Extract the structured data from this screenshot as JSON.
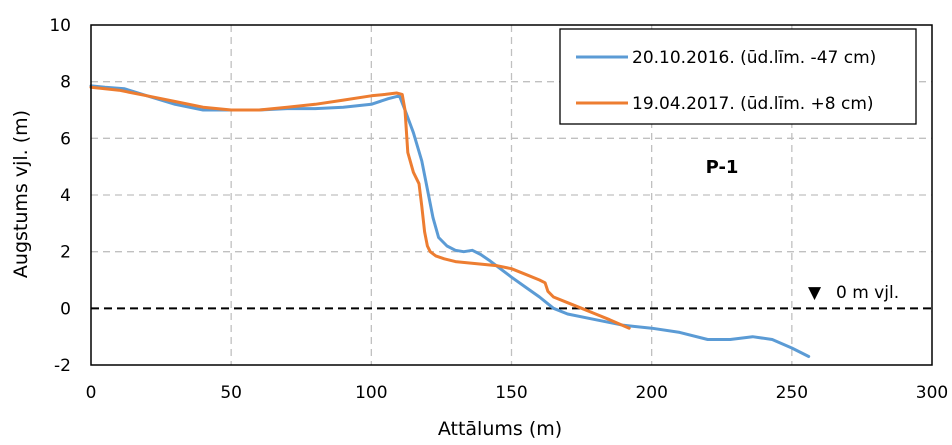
{
  "chart_data": {
    "type": "line",
    "title": "",
    "xlabel": "Attālums (m)",
    "ylabel": "Augstums vjl. (m)",
    "xlim": [
      0,
      300
    ],
    "ylim": [
      -2,
      10
    ],
    "xticks": [
      0,
      50,
      100,
      150,
      200,
      250,
      300
    ],
    "yticks": [
      -2,
      0,
      2,
      4,
      6,
      8,
      10
    ],
    "xtick_labels": [
      "0",
      "50",
      "100",
      "150",
      "200",
      "250",
      "300"
    ],
    "ytick_labels": [
      "-2",
      "0",
      "2",
      "4",
      "6",
      "8",
      "10"
    ],
    "grid": true,
    "legend_position": "top-right",
    "annotation": "P-1",
    "reference_line": {
      "y": 0,
      "label": "0 m vjl.",
      "marker": "▼",
      "style": "dashed",
      "color": "#000000"
    },
    "series": [
      {
        "name": "20.10.2016. (ūd.līm. -47 cm)",
        "color": "#5B9BD5",
        "x": [
          0,
          5,
          12,
          20,
          30,
          40,
          50,
          60,
          70,
          80,
          90,
          100,
          106,
          110,
          112,
          115,
          118,
          120,
          122,
          124,
          127,
          130,
          133,
          136,
          139,
          142,
          146,
          150,
          155,
          160,
          165,
          170,
          180,
          190,
          200,
          210,
          220,
          228,
          236,
          243,
          250,
          256
        ],
        "y": [
          7.85,
          7.8,
          7.75,
          7.5,
          7.2,
          7.0,
          7.0,
          7.0,
          7.05,
          7.05,
          7.1,
          7.2,
          7.4,
          7.5,
          7.0,
          6.2,
          5.2,
          4.2,
          3.2,
          2.5,
          2.2,
          2.05,
          2.0,
          2.05,
          1.9,
          1.7,
          1.4,
          1.1,
          0.75,
          0.4,
          0.0,
          -0.2,
          -0.4,
          -0.6,
          -0.7,
          -0.85,
          -1.1,
          -1.1,
          -1.0,
          -1.1,
          -1.4,
          -1.7
        ]
      },
      {
        "name": "19.04.2017. (ūd.līm. +8 cm)",
        "color": "#ED7D31",
        "x": [
          0,
          10,
          20,
          30,
          40,
          50,
          60,
          70,
          80,
          90,
          100,
          105,
          109,
          111,
          112,
          113,
          115,
          117,
          118,
          119,
          120,
          121,
          123,
          126,
          130,
          135,
          140,
          145,
          150,
          155,
          160,
          162,
          163,
          165,
          170,
          175,
          180,
          185,
          192
        ],
        "y": [
          7.8,
          7.7,
          7.5,
          7.3,
          7.1,
          7.0,
          7.0,
          7.1,
          7.2,
          7.35,
          7.5,
          7.55,
          7.6,
          7.55,
          7.0,
          5.5,
          4.8,
          4.4,
          3.6,
          2.7,
          2.2,
          2.0,
          1.85,
          1.75,
          1.65,
          1.6,
          1.55,
          1.5,
          1.4,
          1.2,
          1.0,
          0.9,
          0.6,
          0.4,
          0.2,
          0.0,
          -0.2,
          -0.4,
          -0.7
        ]
      }
    ]
  }
}
